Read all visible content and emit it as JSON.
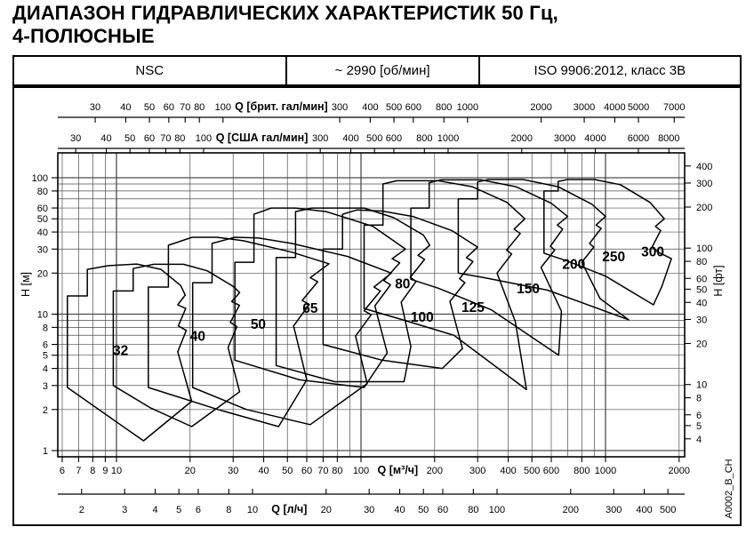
{
  "title_line1": "ДИАПАЗОН ГИДРАВЛИЧЕСКИХ ХАРАКТЕРИСТИК 50 Гц,",
  "title_line2": "4-ПОЛЮСНЫЕ",
  "header": {
    "series_name": "NSC",
    "speed": "~ 2990 [об/мин]",
    "standard": "ISO 9906:2012, класс 3В"
  },
  "watermark": "A0002_B_CH",
  "chart_data": {
    "type": "area",
    "title": "Диапазон гидравлических характеристик NSC",
    "scales": {
      "x_m3h": {
        "label": "Q [м³/ч]",
        "to_m3h": 1,
        "ticks": [
          6,
          7,
          8,
          9,
          10,
          20,
          30,
          40,
          50,
          60,
          70,
          80,
          100,
          200,
          300,
          400,
          500,
          600,
          800,
          1000,
          2000
        ],
        "unit_gap": [
          100,
          200
        ],
        "range": [
          5.9,
          2100
        ]
      },
      "x_lh": {
        "label": "Q [л/ч]",
        "to_m3h": 3.6,
        "ticks": [
          2,
          3,
          4,
          5,
          6,
          8,
          10,
          20,
          30,
          40,
          50,
          60,
          80,
          100,
          200,
          300,
          400,
          500
        ],
        "unit_gap": [
          10,
          20
        ]
      },
      "x_imp": {
        "label": "Q [брит. гал/мин]",
        "to_m3h": 0.27276,
        "ticks": [
          30,
          40,
          50,
          60,
          70,
          80,
          100,
          300,
          400,
          500,
          600,
          800,
          1000,
          2000,
          3000,
          4000,
          5000,
          7000
        ],
        "unit_gap": [
          100,
          300
        ]
      },
      "x_us": {
        "label": "Q [США гал/мин]",
        "to_m3h": 0.22712,
        "ticks": [
          30,
          40,
          50,
          60,
          70,
          80,
          100,
          300,
          400,
          500,
          600,
          800,
          1000,
          2000,
          3000,
          4000,
          6000,
          8000
        ],
        "unit_gap": [
          100,
          300
        ]
      },
      "y_m": {
        "label": "H [м]",
        "to_m": 1,
        "ticks": [
          100,
          80,
          60,
          50,
          40,
          30,
          20,
          10,
          8,
          6,
          5,
          4,
          3,
          2,
          1
        ],
        "range": [
          0.9,
          152
        ]
      },
      "y_ft": {
        "label": "H [фт]",
        "to_m": 0.3048,
        "ticks": [
          400,
          300,
          200,
          100,
          80,
          60,
          50,
          40,
          30,
          20,
          10,
          8,
          6,
          5,
          4
        ]
      }
    },
    "grid": {
      "x_minor": [
        6,
        7,
        8,
        9,
        10,
        20,
        30,
        40,
        50,
        60,
        70,
        80,
        90,
        100,
        200,
        300,
        400,
        500,
        600,
        700,
        800,
        900,
        1000,
        2000
      ],
      "x_major": [
        10,
        100,
        1000
      ],
      "y_minor": [
        1,
        2,
        3,
        4,
        5,
        6,
        7,
        8,
        9,
        10,
        20,
        30,
        40,
        50,
        60,
        70,
        80,
        90,
        100
      ],
      "y_major": [
        1,
        10,
        100
      ]
    },
    "series": [
      {
        "name": "32",
        "label_at": [
          10.4,
          5.0
        ],
        "outline": [
          [
            6.3,
            2.9
          ],
          [
            6.3,
            13.6
          ],
          [
            7.6,
            13.6
          ],
          [
            7.6,
            21.3
          ],
          [
            9.3,
            22.7
          ],
          [
            12.1,
            23.3
          ],
          [
            15.2,
            21.3
          ],
          [
            18.3,
            16.2
          ],
          [
            19.1,
            13.8
          ],
          [
            17.8,
            11.7
          ],
          [
            19.2,
            11.0
          ],
          [
            17.9,
            8.2
          ],
          [
            19.3,
            7.6
          ],
          [
            17.8,
            5.3
          ],
          [
            20.3,
            2.3
          ],
          [
            12.9,
            1.18
          ],
          [
            9.2,
            1.8
          ]
        ]
      },
      {
        "name": "40",
        "label_at": [
          21.5,
          6.4
        ],
        "outline": [
          [
            9.7,
            3.0
          ],
          [
            9.7,
            14.8
          ],
          [
            11.7,
            14.8
          ],
          [
            11.7,
            21.6
          ],
          [
            14.2,
            23.2
          ],
          [
            18.8,
            23.2
          ],
          [
            23.5,
            20.8
          ],
          [
            30.0,
            16.0
          ],
          [
            31.9,
            14.4
          ],
          [
            29.6,
            12.4
          ],
          [
            31.8,
            11.6
          ],
          [
            29.2,
            8.7
          ],
          [
            31.1,
            8.1
          ],
          [
            28.6,
            5.7
          ],
          [
            31.9,
            2.7
          ],
          [
            20.3,
            1.5
          ],
          [
            13.8,
            2.05
          ]
        ]
      },
      {
        "name": "50",
        "label_at": [
          38,
          7.8
        ],
        "outline": [
          [
            13.5,
            2.9
          ],
          [
            13.5,
            15.8
          ],
          [
            16.3,
            15.8
          ],
          [
            16.3,
            32.0
          ],
          [
            20.4,
            36.6
          ],
          [
            25.8,
            36.6
          ],
          [
            33,
            34.5
          ],
          [
            52,
            28.5
          ],
          [
            74,
            23.4
          ],
          [
            62,
            18.5
          ],
          [
            66.5,
            17.3
          ],
          [
            57.5,
            12.6
          ],
          [
            61.5,
            11.8
          ],
          [
            53,
            8.2
          ],
          [
            60,
            3.3
          ],
          [
            46,
            1.5
          ],
          [
            26,
            2.0
          ]
        ]
      },
      {
        "name": "65",
        "label_at": [
          62,
          10.2
        ],
        "outline": [
          [
            20.5,
            2.9
          ],
          [
            20.5,
            17.0
          ],
          [
            24.6,
            17.0
          ],
          [
            24.6,
            33.0
          ],
          [
            30.5,
            36.6
          ],
          [
            38,
            36.2
          ],
          [
            52,
            33.0
          ],
          [
            88,
            26.5
          ],
          [
            133,
            20.0
          ],
          [
            113,
            15.8
          ],
          [
            120,
            14.8
          ],
          [
            103,
            10.6
          ],
          [
            110,
            9.9
          ],
          [
            95,
            6.9
          ],
          [
            106,
            3.1
          ],
          [
            62,
            1.55
          ],
          [
            34,
            2.0
          ]
        ]
      },
      {
        "name": "80",
        "label_at": [
          148,
          15.5
        ],
        "outline": [
          [
            30.5,
            4.6
          ],
          [
            30.5,
            24.0
          ],
          [
            36.5,
            24.0
          ],
          [
            36.5,
            54.0
          ],
          [
            43,
            60.0
          ],
          [
            54,
            60.0
          ],
          [
            72,
            56.5
          ],
          [
            112,
            44.0
          ],
          [
            152,
            30.0
          ],
          [
            134,
            25.5
          ],
          [
            144,
            23.8
          ],
          [
            124,
            17.6
          ],
          [
            132,
            16.4
          ],
          [
            114,
            11.5
          ],
          [
            128,
            5.2
          ],
          [
            103,
            2.9
          ],
          [
            56,
            3.3
          ]
        ]
      },
      {
        "name": "100",
        "label_at": [
          178,
          8.8
        ],
        "outline": [
          [
            45,
            4.2
          ],
          [
            45,
            26.0
          ],
          [
            54,
            26.0
          ],
          [
            54,
            56.5
          ],
          [
            63,
            60.0
          ],
          [
            103,
            60.0
          ],
          [
            136,
            51.0
          ],
          [
            180,
            38.0
          ],
          [
            191,
            32.0
          ],
          [
            171,
            27.0
          ],
          [
            182,
            25.2
          ],
          [
            159,
            18.6
          ],
          [
            168,
            17.4
          ],
          [
            146,
            12.2
          ],
          [
            160,
            5.8
          ],
          [
            150,
            3.2
          ],
          [
            78,
            3.2
          ]
        ]
      },
      {
        "name": "125",
        "label_at": [
          287,
          10.4
        ],
        "outline": [
          [
            70,
            6.0
          ],
          [
            70,
            30.0
          ],
          [
            84,
            30.0
          ],
          [
            84,
            54.0
          ],
          [
            96,
            58.0
          ],
          [
            122,
            57.0
          ],
          [
            163,
            52.0
          ],
          [
            235,
            41.0
          ],
          [
            300,
            31.0
          ],
          [
            270,
            26.0
          ],
          [
            287,
            24.3
          ],
          [
            253,
            18.2
          ],
          [
            266,
            17.0
          ],
          [
            231,
            12.4
          ],
          [
            260,
            5.6
          ],
          [
            215,
            4.0
          ],
          [
            122,
            4.6
          ]
        ]
      },
      {
        "name": "150",
        "label_at": [
          483,
          14.2
        ],
        "outline": [
          [
            103,
            11.0
          ],
          [
            103,
            45.0
          ],
          [
            123,
            45.0
          ],
          [
            123,
            90.0
          ],
          [
            140,
            95.0
          ],
          [
            207,
            95.0
          ],
          [
            285,
            86.0
          ],
          [
            395,
            66.0
          ],
          [
            468,
            50.0
          ],
          [
            423,
            42.0
          ],
          [
            448,
            39.0
          ],
          [
            394,
            29.5
          ],
          [
            413,
            27.6
          ],
          [
            360,
            20.0
          ],
          [
            428,
            8.8
          ],
          [
            475,
            2.8
          ],
          [
            240,
            7.0
          ],
          [
            145,
            9.2
          ]
        ]
      },
      {
        "name": "200",
        "label_at": [
          742,
          21.5
        ],
        "outline": [
          [
            160,
            18.0
          ],
          [
            160,
            60.0
          ],
          [
            190,
            60.0
          ],
          [
            190,
            92.0
          ],
          [
            212,
            96.5
          ],
          [
            310,
            96.5
          ],
          [
            430,
            86.0
          ],
          [
            600,
            65.0
          ],
          [
            700,
            52.0
          ],
          [
            635,
            45.0
          ],
          [
            668,
            42.0
          ],
          [
            595,
            31.5
          ],
          [
            620,
            29.5
          ],
          [
            545,
            22.0
          ],
          [
            660,
            10.5
          ],
          [
            643,
            5.0
          ],
          [
            340,
            10.8
          ],
          [
            207,
            15.5
          ]
        ]
      },
      {
        "name": "250",
        "label_at": [
          1080,
          24.5
        ],
        "outline": [
          [
            250,
            20.0
          ],
          [
            250,
            70.0
          ],
          [
            300,
            70.0
          ],
          [
            300,
            93.0
          ],
          [
            332,
            97.0
          ],
          [
            460,
            97.0
          ],
          [
            640,
            86.0
          ],
          [
            880,
            64.0
          ],
          [
            1000,
            52.0
          ],
          [
            915,
            45.0
          ],
          [
            960,
            42.5
          ],
          [
            860,
            33.0
          ],
          [
            895,
            31.0
          ],
          [
            800,
            24.0
          ],
          [
            950,
            13.0
          ],
          [
            1243,
            9.1
          ],
          [
            580,
            15.0
          ],
          [
            320,
            18.5
          ]
        ]
      },
      {
        "name": "300",
        "label_at": [
          1560,
          26.5
        ],
        "outline": [
          [
            560,
            28.0
          ],
          [
            560,
            80.0
          ],
          [
            640,
            80.0
          ],
          [
            640,
            94.0
          ],
          [
            700,
            97.0
          ],
          [
            900,
            97.0
          ],
          [
            1150,
            89.0
          ],
          [
            1520,
            66.0
          ],
          [
            1740,
            50.0
          ],
          [
            1600,
            44.0
          ],
          [
            1680,
            41.0
          ],
          [
            1550,
            31.0
          ],
          [
            1640,
            28.5
          ],
          [
            1860,
            25.5
          ],
          [
            1700,
            16.0
          ],
          [
            1570,
            11.7
          ],
          [
            1000,
            19.0
          ],
          [
            700,
            24.5
          ]
        ]
      }
    ]
  }
}
